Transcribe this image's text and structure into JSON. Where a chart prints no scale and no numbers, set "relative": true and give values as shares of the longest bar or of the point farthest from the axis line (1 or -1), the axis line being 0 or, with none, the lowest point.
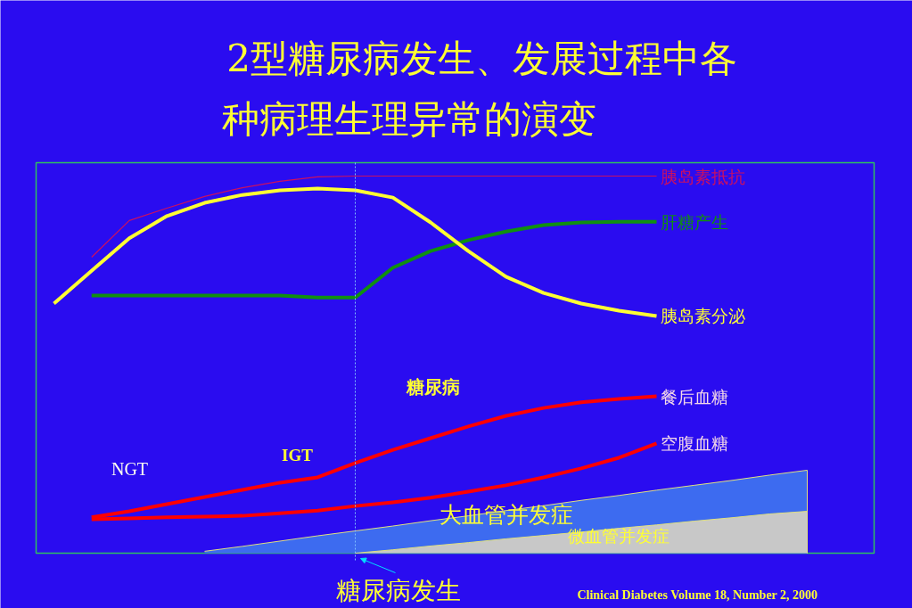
{
  "chart_data": {
    "type": "line",
    "relative": true,
    "title": "2型糖尿病发生、发展过程中各种病理生理异常的演变",
    "categories": [
      null,
      null,
      null,
      null,
      null,
      null,
      null,
      null,
      null,
      null,
      null,
      null,
      null,
      null,
      null,
      null,
      null,
      null,
      null,
      null,
      null
    ],
    "series": [
      {
        "name": "胰岛素抵抗",
        "color": "#cc1060",
        "values": [
          null,
          0.785,
          0.882,
          0.915,
          0.946,
          0.969,
          0.986,
          0.998,
          1,
          1,
          1,
          1,
          1,
          1,
          1,
          1,
          1,
          null,
          null,
          null,
          null
        ]
      },
      {
        "name": "肝糖产生",
        "color": "#109010",
        "values": [
          null,
          0.683,
          0.683,
          0.683,
          0.683,
          0.683,
          0.683,
          0.678,
          0.678,
          0.757,
          0.801,
          0.83,
          0.853,
          0.87,
          0.877,
          0.879,
          0.879,
          null,
          null,
          null,
          null
        ]
      },
      {
        "name": "胰岛素分泌",
        "color": "#ffff33",
        "values": [
          0.662,
          0.749,
          0.835,
          0.894,
          0.929,
          0.95,
          0.962,
          0.967,
          0.962,
          0.943,
          0.877,
          0.801,
          0.733,
          0.69,
          0.662,
          0.643,
          0.629,
          null,
          null,
          null,
          null
        ]
      },
      {
        "name": "餐后血糖",
        "color": "#ff0000",
        "values": [
          null,
          0.095,
          0.111,
          0.13,
          0.149,
          0.168,
          0.187,
          0.201,
          0.239,
          0.274,
          0.305,
          0.336,
          0.364,
          0.385,
          0.4,
          0.409,
          0.416,
          null,
          null,
          null,
          null
        ]
      },
      {
        "name": "空腹血糖",
        "color": "#ff0000",
        "values": [
          null,
          0.09,
          0.092,
          0.095,
          0.097,
          0.099,
          0.106,
          0.113,
          0.125,
          0.135,
          0.147,
          0.163,
          0.18,
          0.201,
          0.225,
          0.253,
          0.291,
          null,
          null,
          null,
          null
        ]
      },
      {
        "name": "大血管并发症",
        "type": "area",
        "color": "#3d6bf0",
        "values": [
          null,
          null,
          null,
          null,
          0.005,
          0.018,
          0.032,
          0.046,
          0.059,
          0.072,
          0.086,
          0.099,
          0.113,
          0.126,
          0.14,
          0.153,
          0.167,
          0.18,
          0.193,
          0.207,
          0.22
        ]
      },
      {
        "name": "微血管并发症",
        "type": "area",
        "color": "#c8c8c8",
        "values": [
          null,
          null,
          null,
          null,
          null,
          null,
          null,
          null,
          0,
          0.009,
          0.019,
          0.028,
          0.038,
          0.047,
          0.056,
          0.066,
          0.075,
          0.085,
          0.094,
          0.104,
          0.111
        ]
      }
    ],
    "annotations": [
      "NGT",
      "IGT",
      "糖尿病",
      "Clinical Diabetes Volume 18, Number 2, 2000",
      "糖尿病发生"
    ],
    "grid": false,
    "marker": "none",
    "line_style": "solid"
  }
}
